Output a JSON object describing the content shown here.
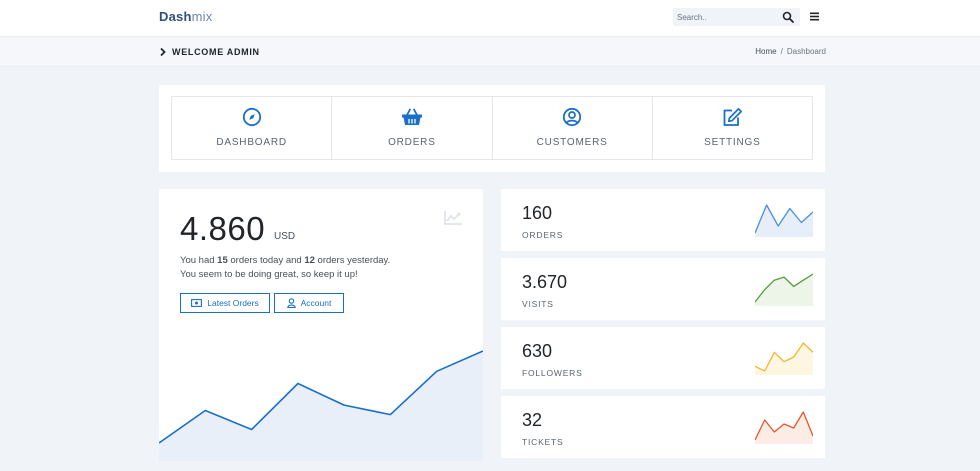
{
  "header": {
    "brand_part1": "Dash",
    "brand_part2": "mix",
    "search_placeholder": "Search.."
  },
  "hero": {
    "title": "WELCOME ADMIN",
    "breadcrumb": [
      "Home",
      "Dashboard"
    ]
  },
  "nav": [
    {
      "label": "DASHBOARD",
      "icon": "compass-icon"
    },
    {
      "label": "ORDERS",
      "icon": "basket-icon"
    },
    {
      "label": "CUSTOMERS",
      "icon": "user-circle-icon"
    },
    {
      "label": "SETTINGS",
      "icon": "edit-icon"
    }
  ],
  "earnings": {
    "value": "4.860",
    "unit": "USD",
    "line1_prefix": "You had ",
    "orders_today": "15",
    "line1_middle": " orders today and ",
    "orders_yesterday": "12",
    "line1_suffix": " orders yesterday.",
    "line2": "You seem to be doing great, so keep it up!",
    "btn_latest_orders": "Latest Orders",
    "btn_account": "Account",
    "chart_series": [
      12,
      36,
      22,
      56,
      40,
      33,
      65,
      80
    ]
  },
  "stats": [
    {
      "value": "160",
      "label": "ORDERS",
      "color": "#4a90d9",
      "fill": "#e6eef9",
      "series": [
        2,
        10,
        4,
        9,
        5,
        8
      ]
    },
    {
      "value": "3.670",
      "label": "VISITS",
      "color": "#5a9a3f",
      "fill": "#edf5e8",
      "series": [
        2,
        6,
        9,
        10,
        7,
        9,
        11
      ]
    },
    {
      "value": "630",
      "label": "FOLLOWERS",
      "color": "#f3b72a",
      "fill": "#fdf6e0",
      "series": [
        3,
        2,
        6,
        4,
        5,
        8,
        6
      ]
    },
    {
      "value": "32",
      "label": "TICKETS",
      "color": "#e0582f",
      "fill": "#fbece6",
      "series": [
        2,
        7,
        4,
        6,
        5,
        9,
        3
      ]
    }
  ],
  "colors": {
    "primary": "#1a6fc8",
    "page_bg": "#f0f3f8"
  }
}
